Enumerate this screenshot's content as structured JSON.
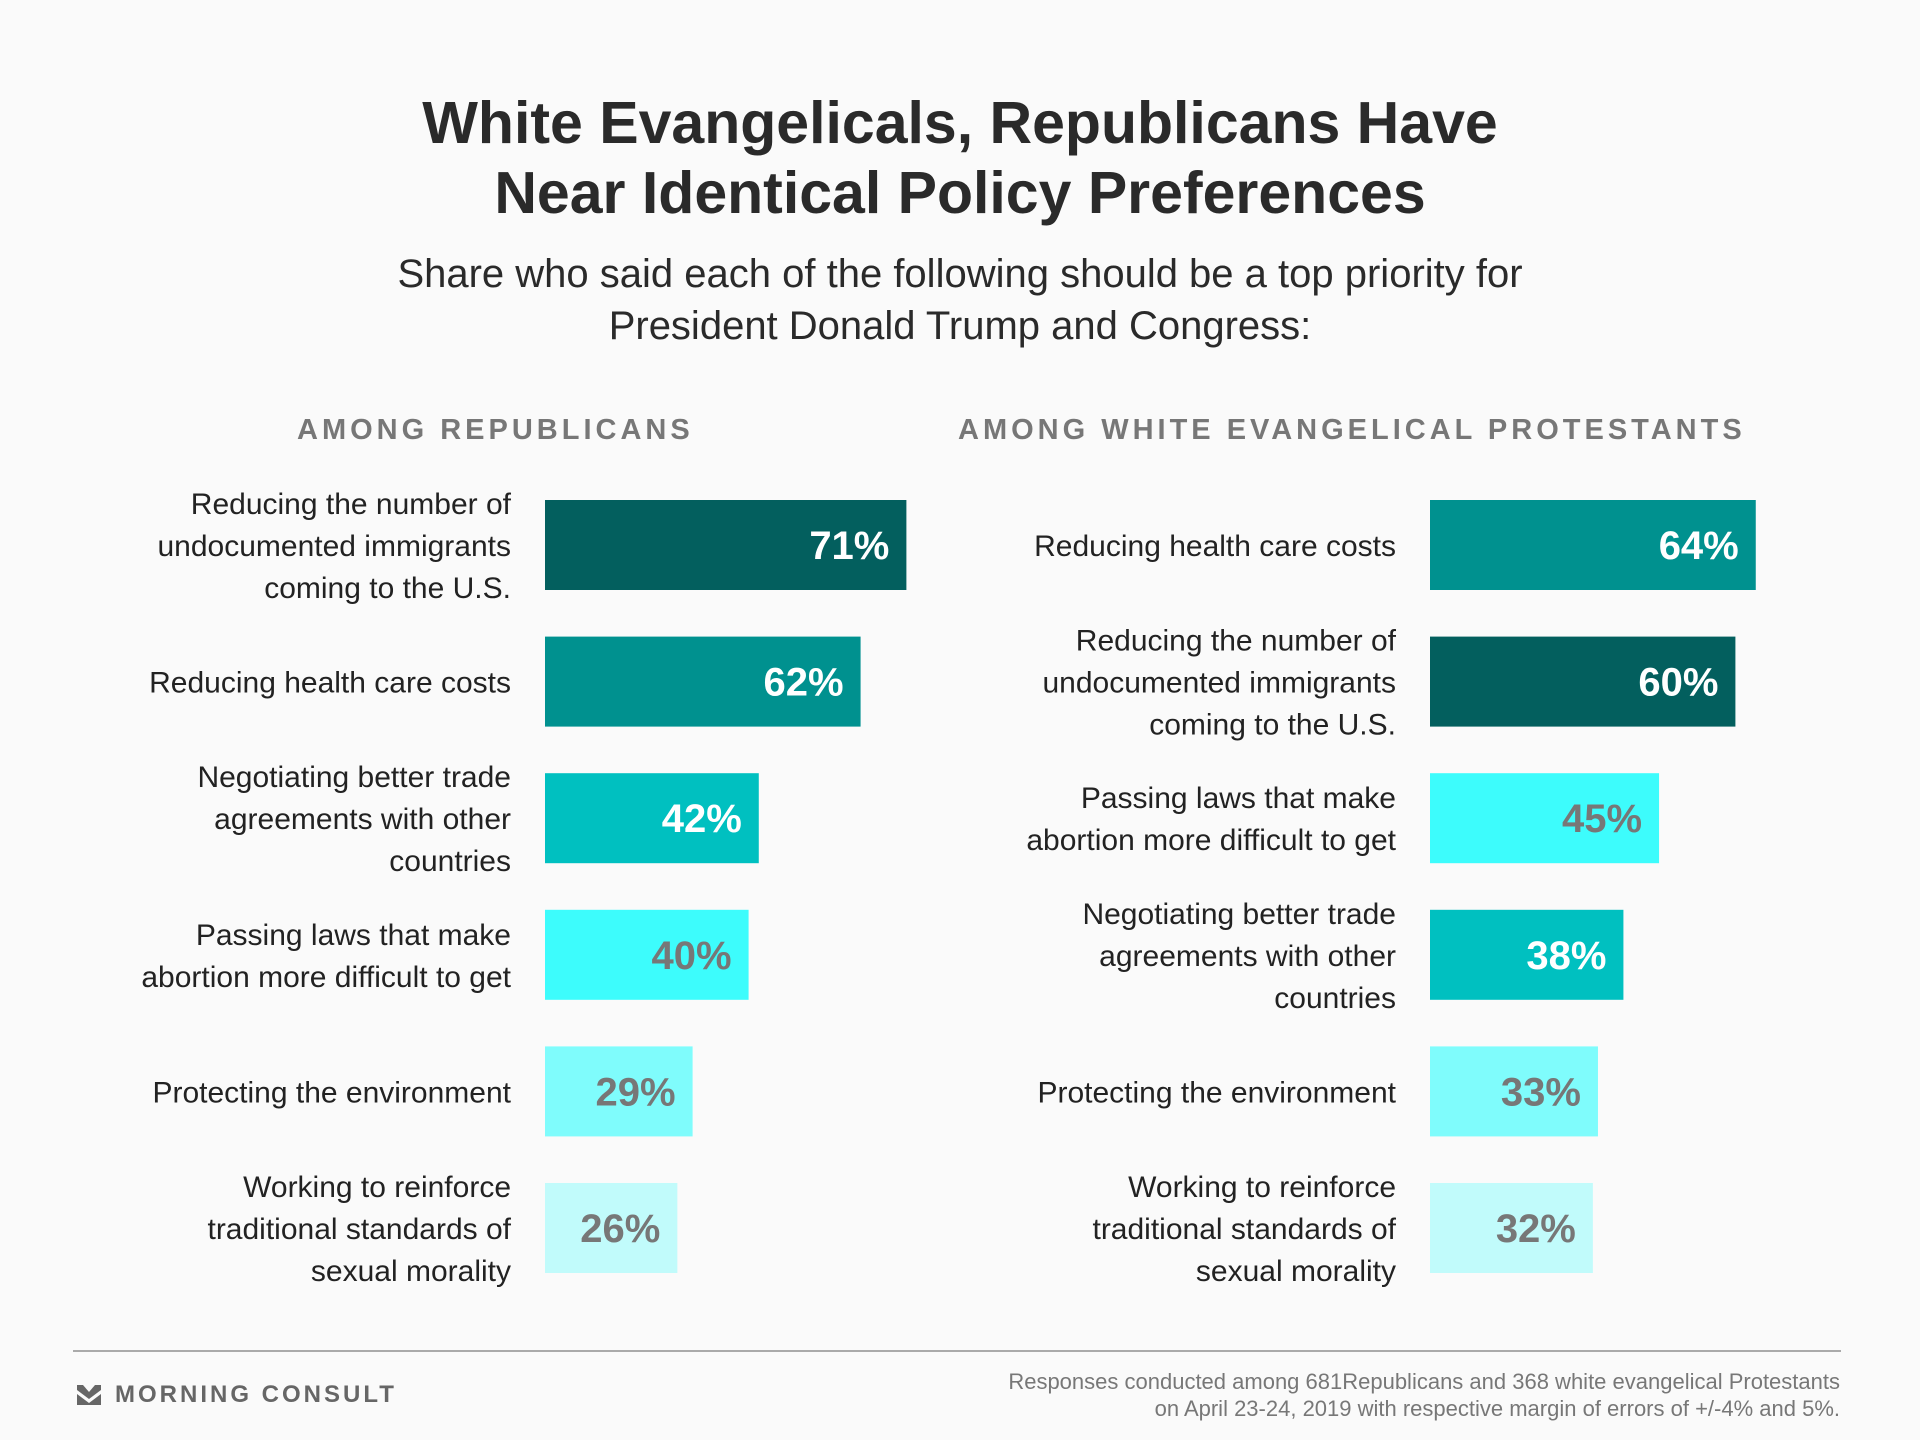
{
  "title_line1": "White Evangelicals, Republicans Have",
  "title_line2": "Near Identical Policy Preferences",
  "subtitle_line1": "Share who said each of the following should be a top priority for",
  "subtitle_line2": "President Donald Trump and Congress:",
  "colors": {
    "immigration": "#035f5e",
    "health": "#00918f",
    "trade": "#00c0c0",
    "abortion": "#3dfcfc",
    "environment": "#7ffcfc",
    "morality": "#c1fbfb",
    "value_light": "#ffffff",
    "value_dark": "#777777"
  },
  "chart_data": [
    {
      "type": "bar",
      "orientation": "horizontal",
      "title": "AMONG REPUBLICANS",
      "unit": "%",
      "categories": [
        [
          "Reducing the number of",
          "undocumented immigrants",
          "coming to the U.S."
        ],
        [
          "Reducing health care costs"
        ],
        [
          "Negotiating better trade",
          "agreements with other",
          "countries"
        ],
        [
          "Passing laws that make",
          "abortion more difficult to get"
        ],
        [
          "Protecting the environment"
        ],
        [
          "Working to reinforce",
          "traditional standards of",
          "sexual morality"
        ]
      ],
      "values": [
        71,
        62,
        42,
        40,
        29,
        26
      ],
      "value_labels": [
        "71%",
        "62%",
        "42%",
        "40%",
        "29%",
        "26%"
      ],
      "color_keys": [
        "immigration",
        "health",
        "trade",
        "abortion",
        "environment",
        "morality"
      ],
      "label_tones": [
        "light",
        "light",
        "light",
        "dark",
        "dark",
        "dark"
      ],
      "xlim": [
        0,
        100
      ]
    },
    {
      "type": "bar",
      "orientation": "horizontal",
      "title": "AMONG WHITE EVANGELICAL PROTESTANTS",
      "unit": "%",
      "categories": [
        [
          "Reducing health care costs"
        ],
        [
          "Reducing the number of",
          "undocumented immigrants",
          "coming to the U.S."
        ],
        [
          "Passing laws that make",
          "abortion more difficult to get"
        ],
        [
          "Negotiating better trade",
          "agreements with other",
          "countries"
        ],
        [
          "Protecting the environment"
        ],
        [
          "Working to reinforce",
          "traditional standards of",
          "sexual morality"
        ]
      ],
      "values": [
        64,
        60,
        45,
        38,
        33,
        32
      ],
      "value_labels": [
        "64%",
        "60%",
        "45%",
        "38%",
        "33%",
        "32%"
      ],
      "color_keys": [
        "health",
        "immigration",
        "abortion",
        "trade",
        "environment",
        "morality"
      ],
      "label_tones": [
        "light",
        "light",
        "dark",
        "light",
        "dark",
        "dark"
      ],
      "xlim": [
        0,
        100
      ]
    }
  ],
  "footer": {
    "brand": "MORNING CONSULT",
    "note_line1": "Responses conducted among 681Republicans and 368 white evangelical Protestants",
    "note_line2": "on April 23-24, 2019 with respective margin of errors of +/-4% and 5%."
  }
}
